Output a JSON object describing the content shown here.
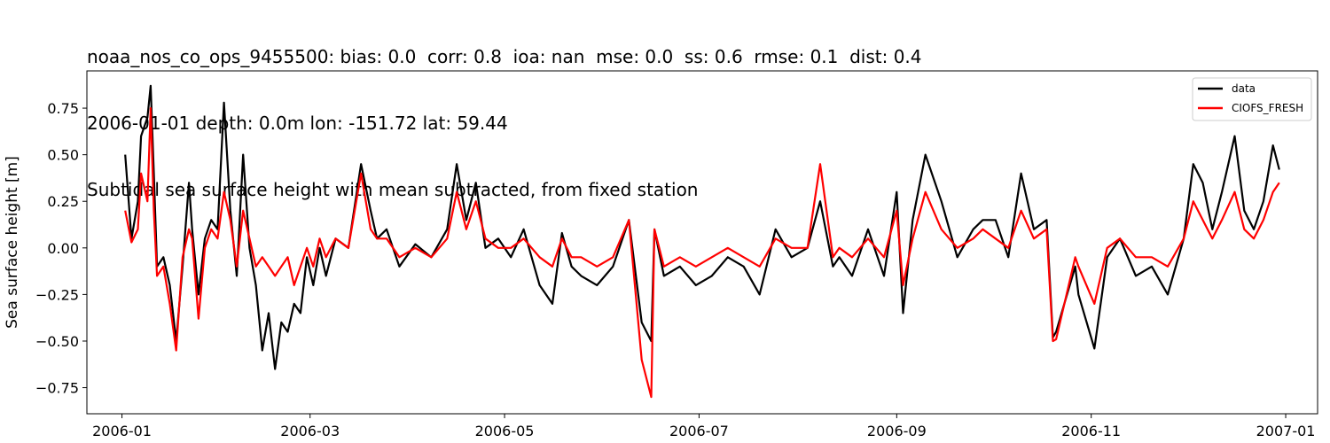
{
  "title_lines": [
    "noaa_nos_co_ops_9455500: bias: 0.0  corr: 0.8  ioa: nan  mse: 0.0  ss: 0.6  rmse: 0.1  dist: 0.4",
    "2006-01-01 depth: 0.0m lon: -151.72 lat: 59.44",
    "Subtidal sea surface height with mean subtracted, from fixed station"
  ],
  "colors": {
    "data": "#000000",
    "model": "#ff0000"
  },
  "chart_data": {
    "type": "line",
    "title": "noaa_nos_co_ops_9455500: bias: 0.0  corr: 0.8  ioa: nan  mse: 0.0  ss: 0.6  rmse: 0.1  dist: 0.4",
    "xlabel": "",
    "ylabel": "Sea surface height [m]",
    "x_ticks": [
      "2006-01",
      "2006-03",
      "2006-05",
      "2006-07",
      "2006-09",
      "2006-11",
      "2007-01"
    ],
    "y_ticks": [
      -0.75,
      -0.5,
      -0.25,
      0.0,
      0.25,
      0.5,
      0.75
    ],
    "y_tick_labels": [
      "−0.75",
      "−0.50",
      "−0.25",
      "0.00",
      "0.25",
      "0.50",
      "0.75"
    ],
    "xlim": [
      "2005-12-21",
      "2007-01-11"
    ],
    "ylim": [
      -0.89,
      0.95
    ],
    "grid": false,
    "legend_position": "top-right",
    "series": [
      {
        "name": "data",
        "x": [
          "2006-01-02",
          "2006-01-04",
          "2006-01-06",
          "2006-01-07",
          "2006-01-09",
          "2006-01-10",
          "2006-01-11",
          "2006-01-12",
          "2006-01-14",
          "2006-01-16",
          "2006-01-18",
          "2006-01-20",
          "2006-01-22",
          "2006-01-23",
          "2006-01-25",
          "2006-01-27",
          "2006-01-29",
          "2006-01-31",
          "2006-02-02",
          "2006-02-04",
          "2006-02-06",
          "2006-02-08",
          "2006-02-10",
          "2006-02-12",
          "2006-02-14",
          "2006-02-16",
          "2006-02-18",
          "2006-02-20",
          "2006-02-22",
          "2006-02-24",
          "2006-02-26",
          "2006-02-28",
          "2006-03-02",
          "2006-03-04",
          "2006-03-06",
          "2006-03-09",
          "2006-03-13",
          "2006-03-17",
          "2006-03-20",
          "2006-03-22",
          "2006-03-25",
          "2006-03-29",
          "2006-04-03",
          "2006-04-08",
          "2006-04-13",
          "2006-04-16",
          "2006-04-19",
          "2006-04-22",
          "2006-04-25",
          "2006-04-29",
          "2006-05-03",
          "2006-05-07",
          "2006-05-12",
          "2006-05-16",
          "2006-05-19",
          "2006-05-22",
          "2006-05-25",
          "2006-05-30",
          "2006-06-04",
          "2006-06-09",
          "2006-06-13",
          "2006-06-16",
          "2006-06-17",
          "2006-06-20",
          "2006-06-25",
          "2006-06-30",
          "2006-07-05",
          "2006-07-10",
          "2006-07-15",
          "2006-07-20",
          "2006-07-25",
          "2006-07-30",
          "2006-08-04",
          "2006-08-08",
          "2006-08-12",
          "2006-08-14",
          "2006-08-18",
          "2006-08-23",
          "2006-08-28",
          "2006-09-01",
          "2006-09-03",
          "2006-09-06",
          "2006-09-10",
          "2006-09-15",
          "2006-09-20",
          "2006-09-25",
          "2006-09-28",
          "2006-10-02",
          "2006-10-06",
          "2006-10-10",
          "2006-10-14",
          "2006-10-18",
          "2006-10-20",
          "2006-10-21",
          "2006-10-27",
          "2006-10-28",
          "2006-11-02",
          "2006-11-06",
          "2006-11-10",
          "2006-11-15",
          "2006-11-20",
          "2006-11-25",
          "2006-11-30",
          "2006-12-03",
          "2006-12-06",
          "2006-12-09",
          "2006-12-12",
          "2006-12-16",
          "2006-12-19",
          "2006-12-22",
          "2006-12-25",
          "2006-12-28",
          "2006-12-30"
        ],
        "y": [
          0.5,
          0.05,
          0.25,
          0.6,
          0.7,
          0.87,
          0.4,
          -0.1,
          -0.05,
          -0.2,
          -0.5,
          -0.1,
          0.35,
          0.1,
          -0.25,
          0.05,
          0.15,
          0.1,
          0.78,
          0.2,
          -0.15,
          0.5,
          0.0,
          -0.2,
          -0.55,
          -0.35,
          -0.65,
          -0.4,
          -0.45,
          -0.3,
          -0.35,
          -0.05,
          -0.2,
          0.0,
          -0.15,
          0.05,
          0.0,
          0.45,
          0.2,
          0.05,
          0.1,
          -0.1,
          0.02,
          -0.05,
          0.1,
          0.45,
          0.15,
          0.35,
          0.0,
          0.05,
          -0.05,
          0.1,
          -0.2,
          -0.3,
          0.08,
          -0.1,
          -0.15,
          -0.2,
          -0.1,
          0.15,
          -0.4,
          -0.5,
          0.1,
          -0.15,
          -0.1,
          -0.2,
          -0.15,
          -0.05,
          -0.1,
          -0.25,
          0.1,
          -0.05,
          0.0,
          0.25,
          -0.1,
          -0.05,
          -0.15,
          0.1,
          -0.15,
          0.3,
          -0.35,
          0.15,
          0.5,
          0.25,
          -0.05,
          0.1,
          0.15,
          0.15,
          -0.05,
          0.4,
          0.1,
          0.15,
          -0.48,
          -0.45,
          -0.1,
          -0.25,
          -0.54,
          -0.05,
          0.05,
          -0.15,
          -0.1,
          -0.25,
          0.05,
          0.45,
          0.35,
          0.1,
          0.3,
          0.6,
          0.2,
          0.1,
          0.25,
          0.55,
          0.42
        ]
      },
      {
        "name": "CIOFS_FRESH",
        "x": [
          "2006-01-02",
          "2006-01-04",
          "2006-01-06",
          "2006-01-07",
          "2006-01-09",
          "2006-01-10",
          "2006-01-11",
          "2006-01-12",
          "2006-01-14",
          "2006-01-16",
          "2006-01-18",
          "2006-01-20",
          "2006-01-22",
          "2006-01-23",
          "2006-01-25",
          "2006-01-27",
          "2006-01-29",
          "2006-01-31",
          "2006-02-02",
          "2006-02-04",
          "2006-02-06",
          "2006-02-08",
          "2006-02-10",
          "2006-02-12",
          "2006-02-14",
          "2006-02-16",
          "2006-02-18",
          "2006-02-20",
          "2006-02-22",
          "2006-02-24",
          "2006-02-26",
          "2006-02-28",
          "2006-03-02",
          "2006-03-04",
          "2006-03-06",
          "2006-03-09",
          "2006-03-13",
          "2006-03-17",
          "2006-03-20",
          "2006-03-22",
          "2006-03-25",
          "2006-03-29",
          "2006-04-03",
          "2006-04-08",
          "2006-04-13",
          "2006-04-16",
          "2006-04-19",
          "2006-04-22",
          "2006-04-25",
          "2006-04-29",
          "2006-05-03",
          "2006-05-07",
          "2006-05-12",
          "2006-05-16",
          "2006-05-19",
          "2006-05-22",
          "2006-05-25",
          "2006-05-30",
          "2006-06-04",
          "2006-06-09",
          "2006-06-13",
          "2006-06-16",
          "2006-06-17",
          "2006-06-20",
          "2006-06-25",
          "2006-06-30",
          "2006-07-05",
          "2006-07-10",
          "2006-07-15",
          "2006-07-20",
          "2006-07-25",
          "2006-07-30",
          "2006-08-04",
          "2006-08-08",
          "2006-08-12",
          "2006-08-14",
          "2006-08-18",
          "2006-08-23",
          "2006-08-28",
          "2006-09-01",
          "2006-09-03",
          "2006-09-06",
          "2006-09-10",
          "2006-09-15",
          "2006-09-20",
          "2006-09-25",
          "2006-09-28",
          "2006-10-02",
          "2006-10-06",
          "2006-10-10",
          "2006-10-14",
          "2006-10-18",
          "2006-10-20",
          "2006-10-21",
          "2006-10-27",
          "2006-10-28",
          "2006-11-02",
          "2006-11-06",
          "2006-11-10",
          "2006-11-15",
          "2006-11-20",
          "2006-11-25",
          "2006-11-30",
          "2006-12-03",
          "2006-12-06",
          "2006-12-09",
          "2006-12-12",
          "2006-12-16",
          "2006-12-19",
          "2006-12-22",
          "2006-12-25",
          "2006-12-28",
          "2006-12-30"
        ],
        "y": [
          0.2,
          0.03,
          0.1,
          0.4,
          0.25,
          0.75,
          0.2,
          -0.15,
          -0.1,
          -0.3,
          -0.55,
          -0.05,
          0.1,
          0.05,
          -0.38,
          0.0,
          0.1,
          0.05,
          0.3,
          0.15,
          -0.1,
          0.2,
          0.05,
          -0.1,
          -0.05,
          -0.1,
          -0.15,
          -0.1,
          -0.05,
          -0.2,
          -0.1,
          0.0,
          -0.1,
          0.05,
          -0.05,
          0.05,
          0.0,
          0.4,
          0.1,
          0.05,
          0.05,
          -0.05,
          0.0,
          -0.05,
          0.05,
          0.3,
          0.1,
          0.25,
          0.05,
          0.0,
          0.0,
          0.05,
          -0.05,
          -0.1,
          0.05,
          -0.05,
          -0.05,
          -0.1,
          -0.05,
          0.15,
          -0.6,
          -0.8,
          0.1,
          -0.1,
          -0.05,
          -0.1,
          -0.05,
          0.0,
          -0.05,
          -0.1,
          0.05,
          0.0,
          0.0,
          0.45,
          -0.05,
          0.0,
          -0.05,
          0.05,
          -0.05,
          0.2,
          -0.2,
          0.05,
          0.3,
          0.1,
          0.0,
          0.05,
          0.1,
          0.05,
          0.0,
          0.2,
          0.05,
          0.1,
          -0.5,
          -0.49,
          -0.05,
          -0.1,
          -0.3,
          0.0,
          0.05,
          -0.05,
          -0.05,
          -0.1,
          0.05,
          0.25,
          0.15,
          0.05,
          0.15,
          0.3,
          0.1,
          0.05,
          0.15,
          0.3,
          0.35
        ]
      }
    ]
  }
}
